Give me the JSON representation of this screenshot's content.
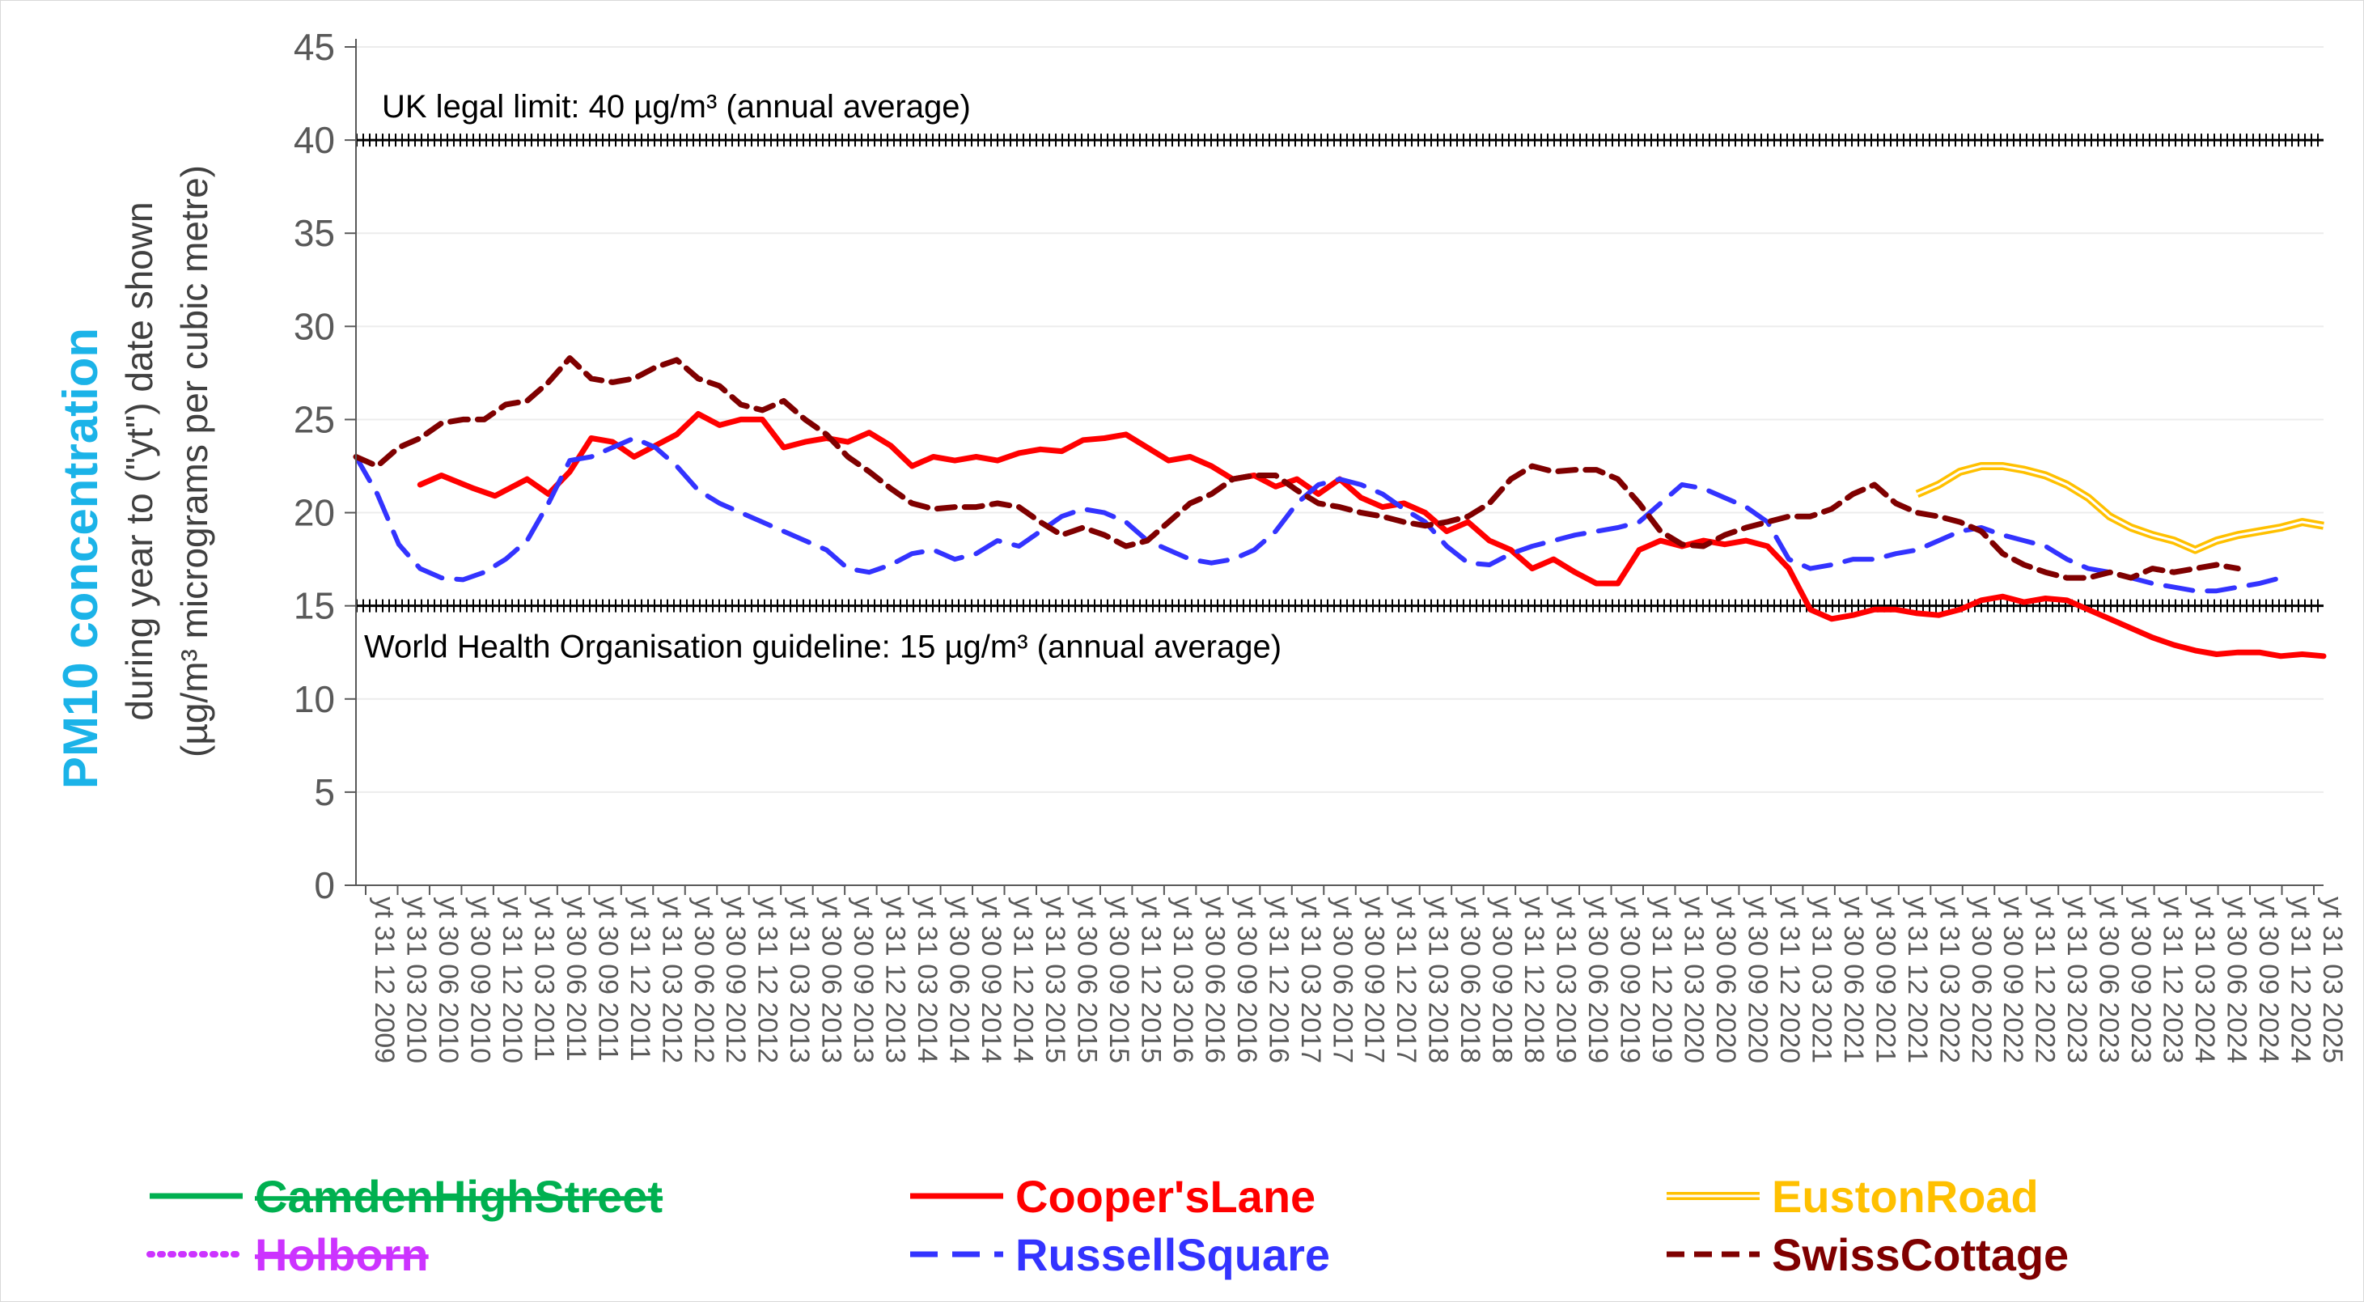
{
  "chart_data": {
    "type": "line",
    "ylabel_main": "PM10 concentration",
    "ylabel_sub": [
      "during year to (\"yt\") date shown",
      "(µg/m³ micrograms per cubic metre)"
    ],
    "ylim": [
      0,
      45
    ],
    "yticks": [
      "0",
      "5",
      "10",
      "15",
      "20",
      "25",
      "30",
      "35",
      "40",
      "45"
    ],
    "grid": "horizontal",
    "legend_position": "bottom",
    "x_labels": [
      "yt 31 12 2009",
      "yt 31 03 2010",
      "yt 30 06 2010",
      "yt 30 09 2010",
      "yt 31 12 2010",
      "yt 31 03 2011",
      "yt 30 06 2011",
      "yt 30 09 2011",
      "yt 31 12 2011",
      "yt 31 03 2012",
      "yt 30 06 2012",
      "yt 30 09 2012",
      "yt 31 12 2012",
      "yt 31 03 2013",
      "yt 30 06 2013",
      "yt 30 09 2013",
      "yt 31 12 2013",
      "yt 31 03 2014",
      "yt 30 06 2014",
      "yt 30 09 2014",
      "yt 31 12 2014",
      "yt 31 03 2015",
      "yt 30 06 2015",
      "yt 30 09 2015",
      "yt 31 12 2015",
      "yt 31 03 2016",
      "yt 30 06 2016",
      "yt 30 09 2016",
      "yt 31 12 2016",
      "yt 31 03 2017",
      "yt 30 06 2017",
      "yt 30 09 2017",
      "yt 31 12 2017",
      "yt 31 03 2018",
      "yt 30 06 2018",
      "yt 30 09 2018",
      "yt 31 12 2018",
      "yt 31 03 2019",
      "yt 30 06 2019",
      "yt 30 09 2019",
      "yt 31 12 2019",
      "yt 31 03 2020",
      "yt 30 06 2020",
      "yt 30 09 2020",
      "yt 31 12 2020",
      "yt 31 03 2021",
      "yt 30 06 2021",
      "yt 30 09 2021",
      "yt 31 12 2021",
      "yt 31 03 2022",
      "yt 30 06 2022",
      "yt 30 09 2022",
      "yt 31 12 2022",
      "yt 31 03 2023",
      "yt 30 06 2023",
      "yt 30 09 2023",
      "yt 31 12 2023",
      "yt 31 03 2024",
      "yt 30 06 2024",
      "yt 30 09 2024",
      "yt 31 12 2024",
      "yt 31 03 2025"
    ],
    "x_index_max": 184,
    "reference_lines": [
      {
        "value": 40,
        "label": "UK legal limit: 40 µg/m³ (annual average)"
      },
      {
        "value": 15,
        "label": "World Health Organisation guideline: 15 µg/m³ (annual average)"
      }
    ],
    "series": [
      {
        "name": "CamdenHighStreet",
        "color": "#00b050",
        "style": "solid",
        "struck": true,
        "points": []
      },
      {
        "name": "Holborn",
        "color": "#cc33ff",
        "style": "dotted",
        "struck": true,
        "points": []
      },
      {
        "name": "Cooper'sLane",
        "color": "#ff0000",
        "style": "solid",
        "struck": false,
        "points": [
          [
            6,
            21.5
          ],
          [
            8,
            22
          ],
          [
            11,
            21.3
          ],
          [
            13,
            20.9
          ],
          [
            15,
            21.5
          ],
          [
            16,
            21.8
          ],
          [
            18,
            21
          ],
          [
            20,
            22.2
          ],
          [
            22,
            24
          ],
          [
            24,
            23.8
          ],
          [
            26,
            23
          ],
          [
            28,
            23.6
          ],
          [
            30,
            24.2
          ],
          [
            32,
            25.3
          ],
          [
            34,
            24.7
          ],
          [
            36,
            25
          ],
          [
            38,
            25
          ],
          [
            40,
            23.5
          ],
          [
            42,
            23.8
          ],
          [
            44,
            24
          ],
          [
            46,
            23.8
          ],
          [
            48,
            24.3
          ],
          [
            50,
            23.6
          ],
          [
            52,
            22.5
          ],
          [
            54,
            23
          ],
          [
            56,
            22.8
          ],
          [
            58,
            23
          ],
          [
            60,
            22.8
          ],
          [
            62,
            23.2
          ],
          [
            64,
            23.4
          ],
          [
            66,
            23.3
          ],
          [
            68,
            23.9
          ],
          [
            70,
            24
          ],
          [
            72,
            24.2
          ],
          [
            74,
            23.5
          ],
          [
            76,
            22.8
          ],
          [
            78,
            23
          ],
          [
            80,
            22.5
          ],
          [
            82,
            21.8
          ],
          [
            84,
            22
          ],
          [
            86,
            21.4
          ],
          [
            88,
            21.8
          ],
          [
            90,
            21
          ],
          [
            92,
            21.8
          ],
          [
            94,
            20.8
          ],
          [
            96,
            20.3
          ],
          [
            98,
            20.5
          ],
          [
            100,
            20
          ],
          [
            102,
            19
          ],
          [
            104,
            19.5
          ],
          [
            106,
            18.5
          ],
          [
            108,
            18
          ],
          [
            110,
            17
          ],
          [
            112,
            17.5
          ],
          [
            114,
            16.8
          ],
          [
            116,
            16.2
          ],
          [
            118,
            16.2
          ],
          [
            120,
            18
          ],
          [
            122,
            18.5
          ],
          [
            124,
            18.2
          ],
          [
            126,
            18.5
          ],
          [
            128,
            18.3
          ],
          [
            130,
            18.5
          ],
          [
            132,
            18.2
          ],
          [
            134,
            17
          ],
          [
            136,
            14.8
          ],
          [
            138,
            14.3
          ],
          [
            140,
            14.5
          ],
          [
            142,
            14.8
          ],
          [
            144,
            14.8
          ],
          [
            146,
            14.6
          ],
          [
            148,
            14.5
          ],
          [
            150,
            14.8
          ],
          [
            152,
            15.3
          ],
          [
            154,
            15.5
          ],
          [
            156,
            15.2
          ],
          [
            158,
            15.4
          ],
          [
            160,
            15.3
          ],
          [
            162,
            14.8
          ],
          [
            164,
            14.3
          ],
          [
            166,
            13.8
          ],
          [
            168,
            13.3
          ],
          [
            170,
            12.9
          ],
          [
            172,
            12.6
          ],
          [
            174,
            12.4
          ],
          [
            176,
            12.5
          ],
          [
            178,
            12.5
          ],
          [
            180,
            12.3
          ],
          [
            182,
            12.4
          ],
          [
            184,
            12.3
          ]
        ]
      },
      {
        "name": "EustonRoad",
        "color": "#ffc000",
        "style": "double",
        "struck": false,
        "points": []
      },
      {
        "name": "RussellSquare",
        "color": "#3333ff",
        "style": "dashed",
        "struck": false,
        "points": [
          [
            0,
            23
          ],
          [
            2,
            21
          ],
          [
            4,
            18.3
          ],
          [
            6,
            17
          ],
          [
            8,
            16.5
          ],
          [
            10,
            16.4
          ],
          [
            12,
            16.8
          ],
          [
            14,
            17.5
          ],
          [
            16,
            18.5
          ],
          [
            18,
            20.5
          ],
          [
            20,
            22.8
          ],
          [
            22,
            23
          ],
          [
            24,
            23.5
          ],
          [
            26,
            24
          ],
          [
            28,
            23.5
          ],
          [
            30,
            22.5
          ],
          [
            32,
            21.2
          ],
          [
            34,
            20.5
          ],
          [
            36,
            20
          ],
          [
            38,
            19.5
          ],
          [
            40,
            19
          ],
          [
            42,
            18.5
          ],
          [
            44,
            18
          ],
          [
            46,
            17
          ],
          [
            48,
            16.8
          ],
          [
            50,
            17.2
          ],
          [
            52,
            17.8
          ],
          [
            54,
            18
          ],
          [
            56,
            17.5
          ],
          [
            58,
            17.8
          ],
          [
            60,
            18.5
          ],
          [
            62,
            18.2
          ],
          [
            64,
            19
          ],
          [
            66,
            19.8
          ],
          [
            68,
            20.2
          ],
          [
            70,
            20
          ],
          [
            72,
            19.5
          ],
          [
            74,
            18.5
          ],
          [
            76,
            18
          ],
          [
            78,
            17.5
          ],
          [
            80,
            17.3
          ],
          [
            82,
            17.5
          ],
          [
            84,
            18
          ],
          [
            86,
            19
          ],
          [
            88,
            20.5
          ],
          [
            90,
            21.5
          ],
          [
            92,
            21.8
          ],
          [
            94,
            21.5
          ],
          [
            96,
            21
          ],
          [
            98,
            20.2
          ],
          [
            100,
            19.5
          ],
          [
            102,
            18.2
          ],
          [
            104,
            17.3
          ],
          [
            106,
            17.2
          ],
          [
            108,
            17.8
          ],
          [
            110,
            18.2
          ],
          [
            112,
            18.5
          ],
          [
            114,
            18.8
          ],
          [
            116,
            19
          ],
          [
            118,
            19.2
          ],
          [
            120,
            19.5
          ],
          [
            122,
            20.5
          ],
          [
            124,
            21.5
          ],
          [
            126,
            21.3
          ],
          [
            128,
            20.8
          ],
          [
            130,
            20.3
          ],
          [
            132,
            19.5
          ],
          [
            134,
            17.5
          ],
          [
            136,
            17
          ],
          [
            138,
            17.2
          ],
          [
            140,
            17.5
          ],
          [
            142,
            17.5
          ],
          [
            144,
            17.8
          ],
          [
            146,
            18
          ],
          [
            148,
            18.5
          ],
          [
            150,
            19
          ],
          [
            152,
            19.2
          ],
          [
            154,
            18.8
          ],
          [
            156,
            18.5
          ],
          [
            158,
            18.2
          ],
          [
            160,
            17.5
          ],
          [
            162,
            17
          ],
          [
            164,
            16.8
          ],
          [
            166,
            16.5
          ],
          [
            168,
            16.2
          ],
          [
            170,
            16
          ],
          [
            172,
            15.8
          ],
          [
            174,
            15.8
          ],
          [
            176,
            16
          ],
          [
            178,
            16.2
          ],
          [
            180,
            16.5
          ]
        ]
      },
      {
        "name": "SwissCottage",
        "color": "#7f0000",
        "style": "dashed",
        "struck": false,
        "points": [
          [
            0,
            23
          ],
          [
            2,
            22.5
          ],
          [
            4,
            23.5
          ],
          [
            6,
            24
          ],
          [
            8,
            24.8
          ],
          [
            10,
            25
          ],
          [
            12,
            25
          ],
          [
            14,
            25.8
          ],
          [
            16,
            26
          ],
          [
            18,
            27
          ],
          [
            20,
            28.3
          ],
          [
            22,
            27.2
          ],
          [
            24,
            27
          ],
          [
            26,
            27.2
          ],
          [
            28,
            27.8
          ],
          [
            30,
            28.2
          ],
          [
            32,
            27.2
          ],
          [
            34,
            26.8
          ],
          [
            36,
            25.8
          ],
          [
            38,
            25.5
          ],
          [
            40,
            26
          ],
          [
            42,
            25
          ],
          [
            44,
            24.2
          ],
          [
            46,
            23
          ],
          [
            48,
            22.2
          ],
          [
            50,
            21.3
          ],
          [
            52,
            20.5
          ],
          [
            54,
            20.2
          ],
          [
            56,
            20.3
          ],
          [
            58,
            20.3
          ],
          [
            60,
            20.5
          ],
          [
            62,
            20.3
          ],
          [
            64,
            19.5
          ],
          [
            66,
            18.8
          ],
          [
            68,
            19.2
          ],
          [
            70,
            18.8
          ],
          [
            72,
            18.2
          ],
          [
            74,
            18.5
          ],
          [
            76,
            19.5
          ],
          [
            78,
            20.5
          ],
          [
            80,
            21
          ],
          [
            82,
            21.8
          ],
          [
            84,
            22
          ],
          [
            86,
            22
          ],
          [
            88,
            21.2
          ],
          [
            90,
            20.5
          ],
          [
            92,
            20.3
          ],
          [
            94,
            20
          ],
          [
            96,
            19.8
          ],
          [
            98,
            19.5
          ],
          [
            100,
            19.3
          ],
          [
            102,
            19.5
          ],
          [
            104,
            19.8
          ],
          [
            106,
            20.5
          ],
          [
            108,
            21.8
          ],
          [
            110,
            22.5
          ],
          [
            112,
            22.2
          ],
          [
            114,
            22.3
          ],
          [
            116,
            22.3
          ],
          [
            118,
            21.8
          ],
          [
            120,
            20.5
          ],
          [
            122,
            19
          ],
          [
            124,
            18.3
          ],
          [
            126,
            18.2
          ],
          [
            128,
            18.8
          ],
          [
            130,
            19.2
          ],
          [
            132,
            19.5
          ],
          [
            134,
            19.8
          ],
          [
            136,
            19.8
          ],
          [
            138,
            20.2
          ],
          [
            140,
            21
          ],
          [
            142,
            21.5
          ],
          [
            144,
            20.5
          ],
          [
            146,
            20
          ],
          [
            148,
            19.8
          ],
          [
            150,
            19.5
          ],
          [
            152,
            19
          ],
          [
            154,
            17.8
          ],
          [
            156,
            17.2
          ],
          [
            158,
            16.8
          ],
          [
            160,
            16.5
          ],
          [
            162,
            16.5
          ],
          [
            164,
            16.8
          ],
          [
            166,
            16.5
          ],
          [
            168,
            17
          ],
          [
            170,
            16.8
          ],
          [
            172,
            17
          ],
          [
            174,
            17.2
          ],
          [
            176,
            17
          ]
        ]
      }
    ]
  },
  "legend": [
    {
      "name": "CamdenHighStreet",
      "color": "#00b050",
      "style": "solid",
      "struck": true
    },
    {
      "name": "Cooper'sLane",
      "color": "#ff0000",
      "style": "solid",
      "struck": false
    },
    {
      "name": "EustonRoad",
      "color": "#ffc000",
      "style": "double",
      "struck": false
    },
    {
      "name": "Holborn",
      "color": "#cc33ff",
      "style": "dotted",
      "struck": true
    },
    {
      "name": "RussellSquare",
      "color": "#3333ff",
      "style": "dashed",
      "struck": false
    },
    {
      "name": "SwissCottage",
      "color": "#7f0000",
      "style": "dashed",
      "struck": false
    }
  ]
}
